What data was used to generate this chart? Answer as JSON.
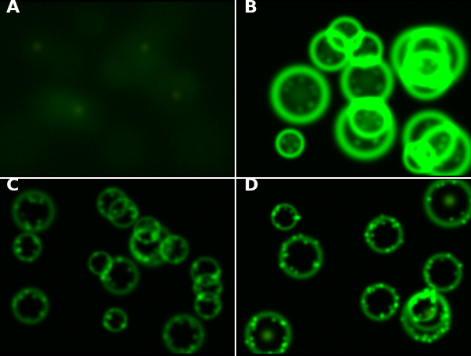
{
  "figsize": [
    6.0,
    4.54
  ],
  "dpi": 100,
  "labels": [
    "A",
    "B",
    "C",
    "D"
  ],
  "label_color": "white",
  "label_fontsize": 16,
  "label_fontweight": "bold",
  "border_color": "white",
  "border_linewidth": 1.5,
  "background_color": "black",
  "panel_A": {
    "bg_green": 0.12,
    "cell_brightness": 0.25,
    "num_cells": 18,
    "seed": 42
  },
  "panel_B": {
    "bg_green": 0.05,
    "cell_brightness": 0.85,
    "num_cells": 14,
    "seed": 7
  },
  "panel_C": {
    "bg_green": 0.04,
    "cell_brightness": 0.55,
    "num_cells": 16,
    "seed": 13
  },
  "panel_D": {
    "bg_green": 0.04,
    "cell_brightness": 0.75,
    "num_cells": 10,
    "seed": 99
  }
}
